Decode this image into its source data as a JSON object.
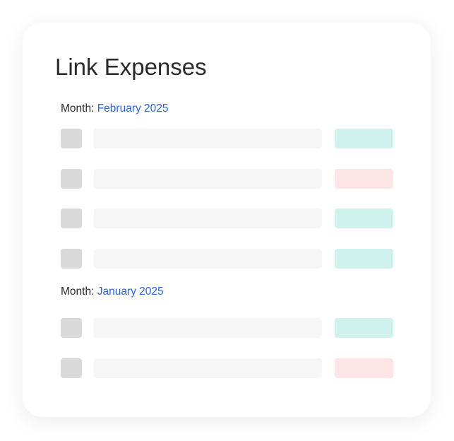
{
  "title": "Link Expenses",
  "month_label": "Month:",
  "groups": [
    {
      "month": "February  2025",
      "rows": [
        {
          "status_color": "#cff2ed"
        },
        {
          "status_color": "#fde4e7"
        },
        {
          "status_color": "#cff2ed"
        },
        {
          "status_color": "#cff2ed"
        }
      ]
    },
    {
      "month": "January 2025",
      "rows": [
        {
          "status_color": "#cff2ed"
        },
        {
          "status_color": "#fde4e7"
        }
      ]
    }
  ]
}
